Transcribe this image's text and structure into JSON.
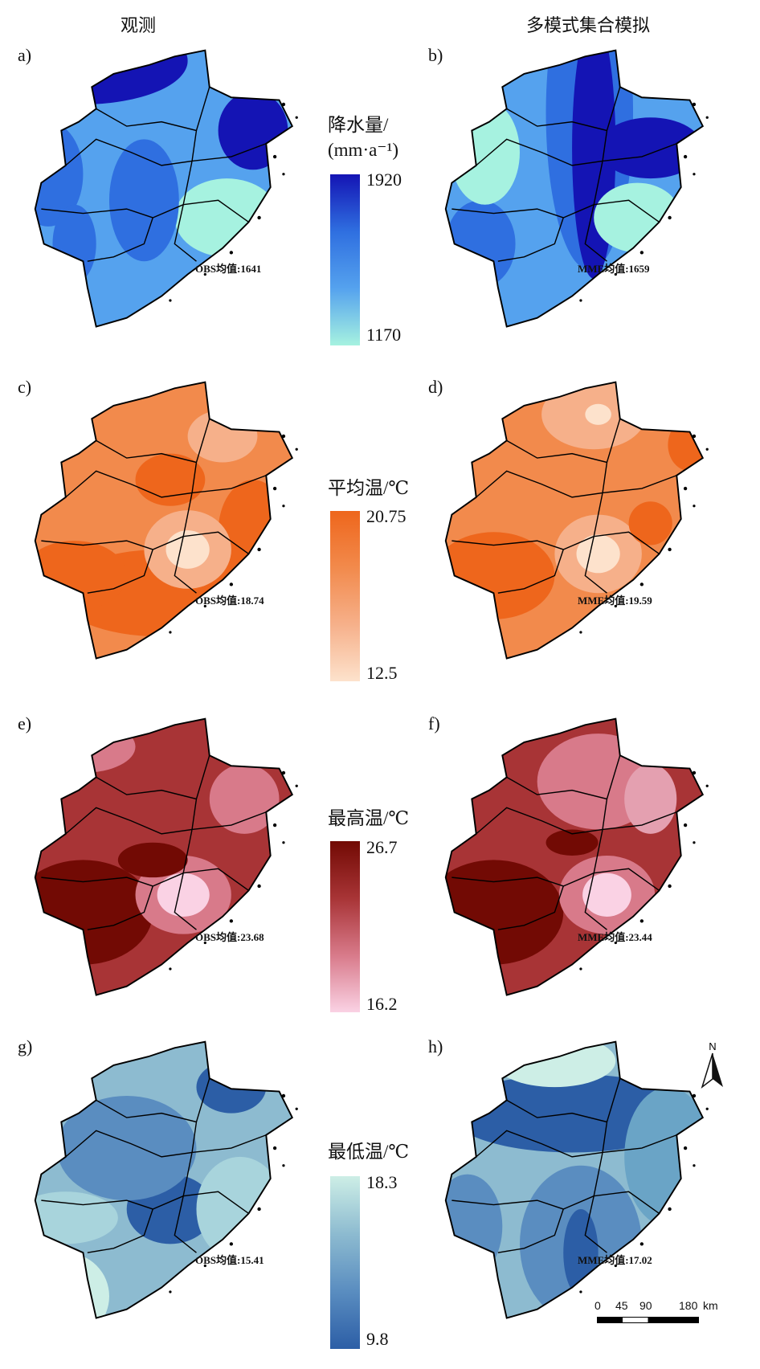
{
  "columns": {
    "left": "观测",
    "right": "多模式集合模拟"
  },
  "panels": [
    {
      "label": "a)",
      "mean": "OBS均值:1641"
    },
    {
      "label": "b)",
      "mean": "MME均值:1659"
    },
    {
      "label": "c)",
      "mean": "OBS均值:18.74"
    },
    {
      "label": "d)",
      "mean": "MME均值:19.59"
    },
    {
      "label": "e)",
      "mean": "OBS均值:23.68"
    },
    {
      "label": "f)",
      "mean": "MME均值:23.44"
    },
    {
      "label": "g)",
      "mean": "OBS均值:15.41"
    },
    {
      "label": "h)",
      "mean": "MME均值:17.02"
    }
  ],
  "legends": [
    {
      "title_line1": "降水量/",
      "title_line2": "(mm·a⁻¹)",
      "max": "1920",
      "min": "1170",
      "colors": [
        "#1414b4",
        "#2f6fe0",
        "#55a2ee",
        "#a6f2e0"
      ]
    },
    {
      "title_line1": "平均温/℃",
      "max": "20.75",
      "min": "12.5",
      "colors": [
        "#ee661c",
        "#f28a4c",
        "#f6b08a",
        "#fde2cc"
      ]
    },
    {
      "title_line1": "最高温/℃",
      "max": "26.7",
      "min": "16.2",
      "colors": [
        "#720a04",
        "#a83436",
        "#d87a8a",
        "#fad2e4"
      ]
    },
    {
      "title_line1": "最低温/℃",
      "max": "18.3",
      "min": "9.8",
      "colors": [
        "#cdeee6",
        "#8dbbd0",
        "#5a8dc0",
        "#2c5ea6"
      ]
    }
  ],
  "north_label": "N",
  "scale_bar": {
    "ticks": [
      "0",
      "45",
      "90",
      "180"
    ],
    "unit": "km"
  }
}
